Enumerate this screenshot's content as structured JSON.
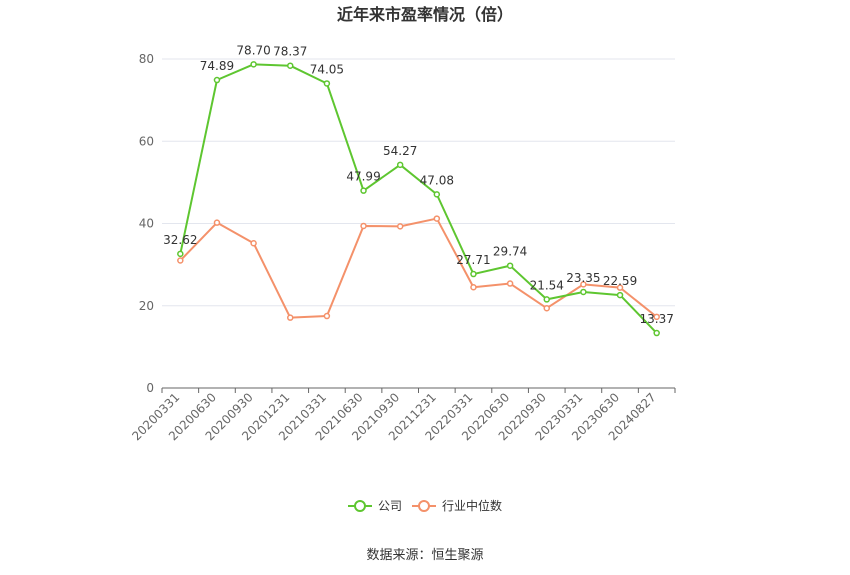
{
  "chart_data": {
    "type": "line",
    "title": "近年来市盈率情况（倍）",
    "categories": [
      "20200331",
      "20200630",
      "20200930",
      "20201231",
      "20210331",
      "20210630",
      "20210930",
      "20211231",
      "20220331",
      "20220630",
      "20220930",
      "20230331",
      "20230630",
      "20240827"
    ],
    "series": [
      {
        "name": "公司",
        "color": "#5ec630",
        "values": [
          32.62,
          74.89,
          78.7,
          78.37,
          74.05,
          47.99,
          54.27,
          47.08,
          27.71,
          29.74,
          21.54,
          23.35,
          22.59,
          13.37
        ],
        "labels": [
          "32.62",
          "74.89",
          "78.70",
          "78.37",
          "74.05",
          "47.99",
          "54.27",
          "47.08",
          "27.71",
          "29.74",
          "21.54",
          "23.35",
          "22.59",
          "13.37"
        ]
      },
      {
        "name": "行业中位数",
        "color": "#f4916a",
        "values": [
          31.0,
          40.2,
          35.2,
          17.1,
          17.5,
          39.4,
          39.3,
          41.2,
          24.5,
          25.4,
          19.4,
          25.2,
          24.4,
          17.3
        ]
      }
    ],
    "ylim": [
      0,
      80
    ],
    "yticks": [
      "0",
      "20",
      "40",
      "60",
      "80"
    ],
    "grid": true,
    "legend": "bottom-center"
  },
  "footer": {
    "source": "数据来源：恒生聚源"
  }
}
